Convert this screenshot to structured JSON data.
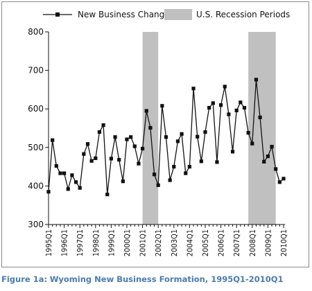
{
  "caption": {
    "label": "Figure 1a:",
    "title": "Wyoming New Business Formation, 1995Q1-2010Q1"
  },
  "colors": {
    "series": "#111111",
    "recession": "#c0c0c0",
    "caption": "#4a7bb0"
  },
  "chart_data": {
    "type": "line",
    "title": "",
    "xlabel": "",
    "ylabel": "",
    "ylim": [
      300,
      800
    ],
    "yticks": [
      300,
      400,
      500,
      600,
      700,
      800
    ],
    "grid": false,
    "legend_position": "top",
    "x_tick_labels": [
      "1995Q1",
      "1996Q1",
      "1997Q1",
      "1998Q1",
      "1999Q1",
      "2000Q1",
      "2001Q1",
      "2002Q1",
      "2003Q1",
      "2004Q1",
      "2005Q1",
      "2006Q1",
      "2007Q1",
      "2008Q1",
      "2009Q1",
      "2010Q1"
    ],
    "x_start_year": 1995,
    "series": [
      {
        "name": "New Business Change",
        "marker": "square",
        "values": [
          385,
          519,
          452,
          433,
          433,
          392,
          428,
          410,
          395,
          483,
          509,
          465,
          472,
          540,
          558,
          378,
          471,
          527,
          468,
          412,
          521,
          527,
          503,
          458,
          497,
          595,
          551,
          430,
          402,
          608,
          527,
          415,
          450,
          516,
          535,
          433,
          450,
          653,
          528,
          464,
          540,
          603,
          615,
          462,
          610,
          658,
          586,
          489,
          596,
          617,
          603,
          538,
          510,
          676,
          578,
          463,
          477,
          502,
          444,
          410,
          419
        ]
      }
    ],
    "shaded_regions": [
      {
        "name": "U.S. Recession Periods",
        "from": "2001Q1",
        "to": "2002Q1"
      },
      {
        "name": "U.S. Recession Periods",
        "from": "2007Q4",
        "to": "2009Q3"
      }
    ]
  }
}
